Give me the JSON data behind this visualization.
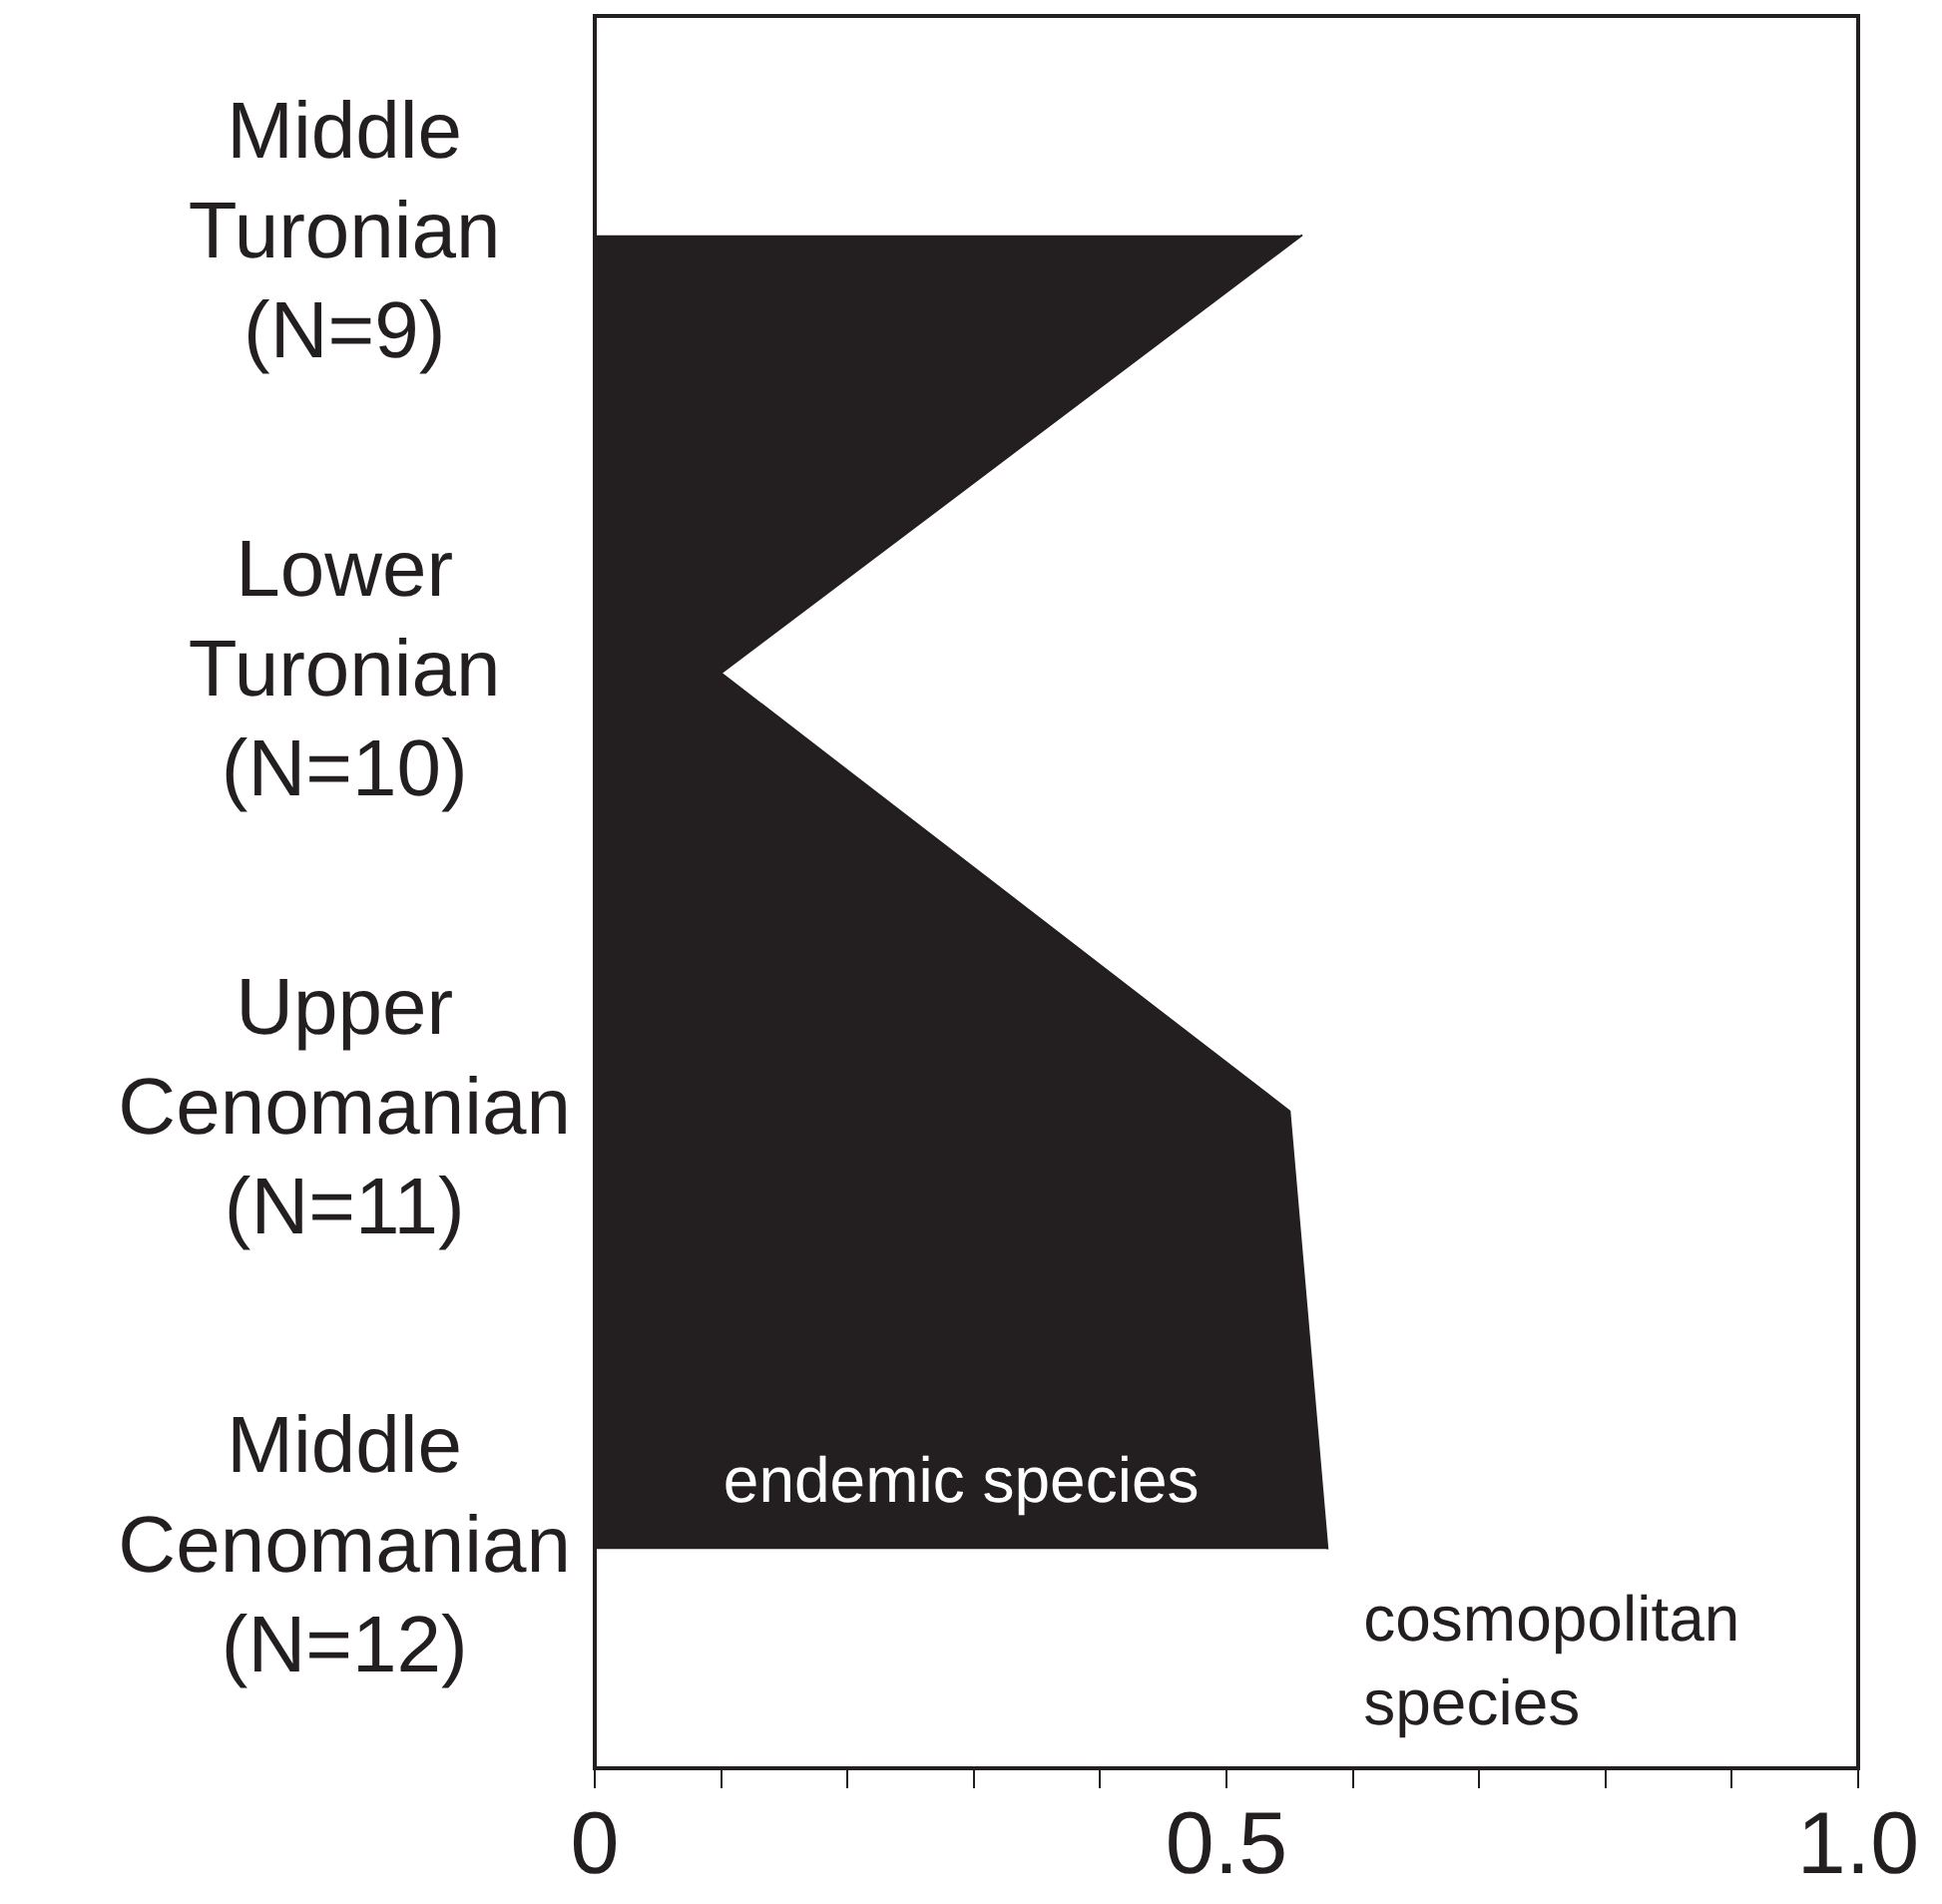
{
  "chart_data": {
    "type": "area",
    "orientation": "horizontal",
    "categories": [
      "Middle Turonian (N=9)",
      "Lower Turonian (N=10)",
      "Upper Cenomanian (N=11)",
      "Middle Cenomanian (N=12)"
    ],
    "values": [
      0.56,
      0.1,
      0.55,
      0.58
    ],
    "color": "#231f20",
    "xlim": [
      0,
      1
    ],
    "xticks": [
      0,
      {
        "value": 0.1,
        "label": null
      },
      {
        "value": 0.2,
        "label": null
      },
      {
        "value": 0.3,
        "label": null
      },
      {
        "value": 0.4,
        "label": null
      },
      0.5,
      {
        "value": 0.6,
        "label": null
      },
      {
        "value": 0.7,
        "label": null
      },
      {
        "value": 0.8,
        "label": null
      },
      {
        "value": 0.9,
        "label": null
      },
      {
        "value": 1,
        "label": "1.0"
      }
    ],
    "grid": false,
    "legend": false,
    "marker": "none",
    "annotations": [
      "endemic species",
      "cosmopolitan species"
    ]
  }
}
